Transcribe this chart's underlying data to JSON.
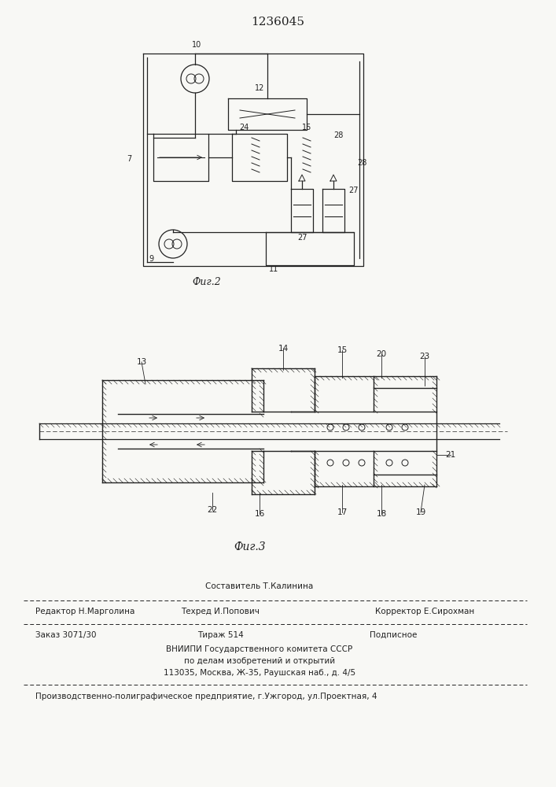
{
  "patent_number": "1236045",
  "fig2_caption": "Фиг.2",
  "fig3_caption": "Фиг.3",
  "footer_line1_center": "Составитель Т.Калинина",
  "footer_line2_left": "Редактор Н.Марголина",
  "footer_line2_center": "Техред И.Попович",
  "footer_line2_right": "Корректор Е.Сирохман",
  "footer_line3_left": "Заказ 3071/30",
  "footer_line3_center": "Тираж 514",
  "footer_line3_right": "Подписное",
  "footer_line4": "ВНИИПИ Государственного комитета СССР",
  "footer_line5": "по делам изобретений и открытий",
  "footer_line6": "113035, Москва, Ж-35, Раушская наб., д. 4/5",
  "footer_line7": "Производственно-полиграфическое предприятие, г.Ужгород, ул.Проектная, 4",
  "bg_color": "#f8f8f5",
  "line_color": "#222222"
}
